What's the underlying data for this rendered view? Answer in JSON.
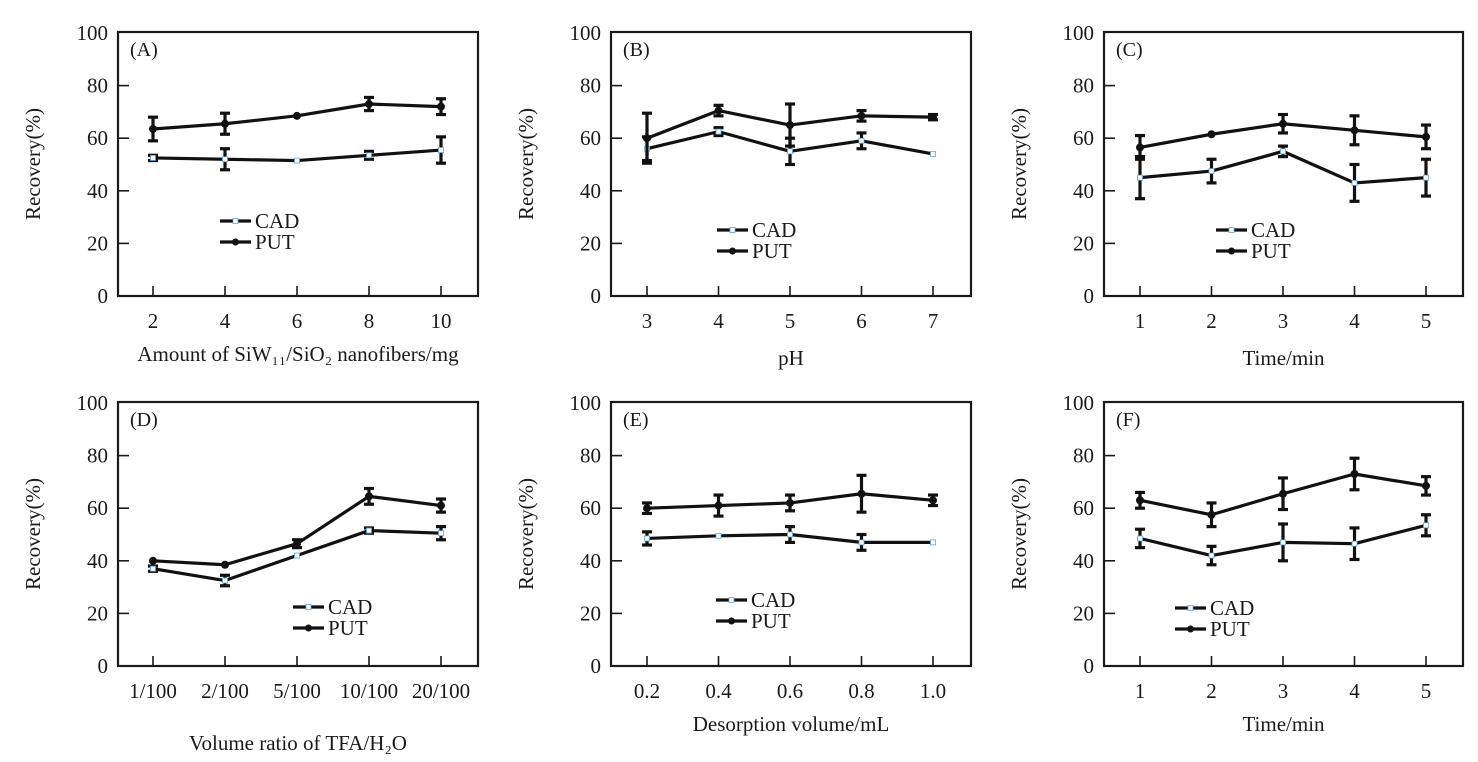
{
  "figure": {
    "colors": {
      "line": "#111111",
      "axis": "#1a1a1a",
      "cad_marker_fill": "#ffffff",
      "cad_marker_edge": "#5aa9d6"
    }
  },
  "chart_data": [
    {
      "type": "line",
      "panel": "(A)",
      "xlabel": "Amount of SiW₁₁/SiO₂ nanofibers/mg",
      "ylabel": "Recovery(%)",
      "ylim": [
        0,
        100
      ],
      "yticks": [
        "0",
        "20",
        "40",
        "60",
        "80",
        "100"
      ],
      "categories": [
        "2",
        "4",
        "6",
        "8",
        "10"
      ],
      "legend": {
        "position": "center-left",
        "entries": [
          "CAD",
          "PUT"
        ]
      },
      "series": [
        {
          "name": "CAD",
          "values": [
            52.5,
            52,
            51.5,
            53.5,
            55.5
          ],
          "errors": [
            1,
            4,
            0.5,
            1.5,
            5
          ]
        },
        {
          "name": "PUT",
          "values": [
            63.5,
            65.5,
            68.5,
            73,
            72
          ],
          "errors": [
            4.5,
            4,
            0.5,
            2.5,
            3
          ]
        }
      ]
    },
    {
      "type": "line",
      "panel": "(B)",
      "xlabel": "pH",
      "ylabel": "Recovery(%)",
      "ylim": [
        0,
        100
      ],
      "yticks": [
        "0",
        "20",
        "40",
        "60",
        "80",
        "100"
      ],
      "categories": [
        "3",
        "4",
        "5",
        "6",
        "7"
      ],
      "legend": {
        "position": "center",
        "entries": [
          "CAD",
          "PUT"
        ]
      },
      "series": [
        {
          "name": "CAD",
          "values": [
            56,
            62.5,
            55,
            59,
            54
          ],
          "errors": [
            4.5,
            1.5,
            5,
            3,
            0.5
          ]
        },
        {
          "name": "PUT",
          "values": [
            60,
            70.5,
            65,
            68.5,
            68
          ],
          "errors": [
            9.5,
            2,
            8,
            2,
            1
          ]
        }
      ]
    },
    {
      "type": "line",
      "panel": "(C)",
      "xlabel": "Time/min",
      "ylabel": "Recovery(%)",
      "ylim": [
        0,
        100
      ],
      "yticks": [
        "0",
        "20",
        "40",
        "60",
        "80",
        "100"
      ],
      "categories": [
        "1",
        "2",
        "3",
        "4",
        "5"
      ],
      "legend": {
        "position": "center",
        "entries": [
          "CAD",
          "PUT"
        ]
      },
      "series": [
        {
          "name": "CAD",
          "values": [
            45,
            47.5,
            55,
            43,
            45
          ],
          "errors": [
            8,
            4.5,
            2,
            7,
            7
          ]
        },
        {
          "name": "PUT",
          "values": [
            56.5,
            61.5,
            65.5,
            63,
            60.5
          ],
          "errors": [
            4.5,
            0.5,
            3.5,
            5.5,
            4.5
          ]
        }
      ]
    },
    {
      "type": "line",
      "panel": "(D)",
      "xlabel": "Volume ratio of TFA/H₂O",
      "ylabel": "Recovery(%)",
      "ylim": [
        0,
        100
      ],
      "yticks": [
        "0",
        "20",
        "40",
        "60",
        "80",
        "100"
      ],
      "categories": [
        "1/100",
        "2/100",
        "5/100",
        "10/100",
        "20/100"
      ],
      "legend": {
        "position": "center-right",
        "entries": [
          "CAD",
          "PUT"
        ]
      },
      "series": [
        {
          "name": "CAD",
          "values": [
            37,
            32.5,
            42,
            51.5,
            50.5
          ],
          "errors": [
            1,
            2,
            0.5,
            1,
            2.5
          ]
        },
        {
          "name": "PUT",
          "values": [
            40,
            38.5,
            46.5,
            64.5,
            61
          ],
          "errors": [
            0.5,
            0.5,
            1.5,
            3,
            2.5
          ]
        }
      ]
    },
    {
      "type": "line",
      "panel": "(E)",
      "xlabel": "Desorption volume/mL",
      "ylabel": "Recovery(%)",
      "ylim": [
        0,
        100
      ],
      "yticks": [
        "0",
        "20",
        "40",
        "60",
        "80",
        "100"
      ],
      "categories": [
        "0.2",
        "0.4",
        "0.6",
        "0.8",
        "1.0"
      ],
      "legend": {
        "position": "center",
        "entries": [
          "CAD",
          "PUT"
        ]
      },
      "series": [
        {
          "name": "CAD",
          "values": [
            48.5,
            49.5,
            50,
            47,
            47
          ],
          "errors": [
            2.5,
            0.5,
            3,
            3,
            0.5
          ]
        },
        {
          "name": "PUT",
          "values": [
            60,
            61,
            62,
            65.5,
            63
          ],
          "errors": [
            2,
            4,
            3,
            7,
            2
          ]
        }
      ]
    },
    {
      "type": "line",
      "panel": "(F)",
      "xlabel": "Time/min",
      "ylabel": "Recovery(%)",
      "ylim": [
        0,
        100
      ],
      "yticks": [
        "0",
        "20",
        "40",
        "60",
        "80",
        "100"
      ],
      "categories": [
        "1",
        "2",
        "3",
        "4",
        "5"
      ],
      "legend": {
        "position": "center-left",
        "entries": [
          "CAD",
          "PUT"
        ]
      },
      "series": [
        {
          "name": "CAD",
          "values": [
            48.5,
            42,
            47,
            46.5,
            53.5
          ],
          "errors": [
            3.5,
            3.5,
            7,
            6,
            4
          ]
        },
        {
          "name": "PUT",
          "values": [
            63,
            57.5,
            65.5,
            73,
            68.5
          ],
          "errors": [
            3,
            4.5,
            6,
            6,
            3.5
          ]
        }
      ]
    }
  ]
}
